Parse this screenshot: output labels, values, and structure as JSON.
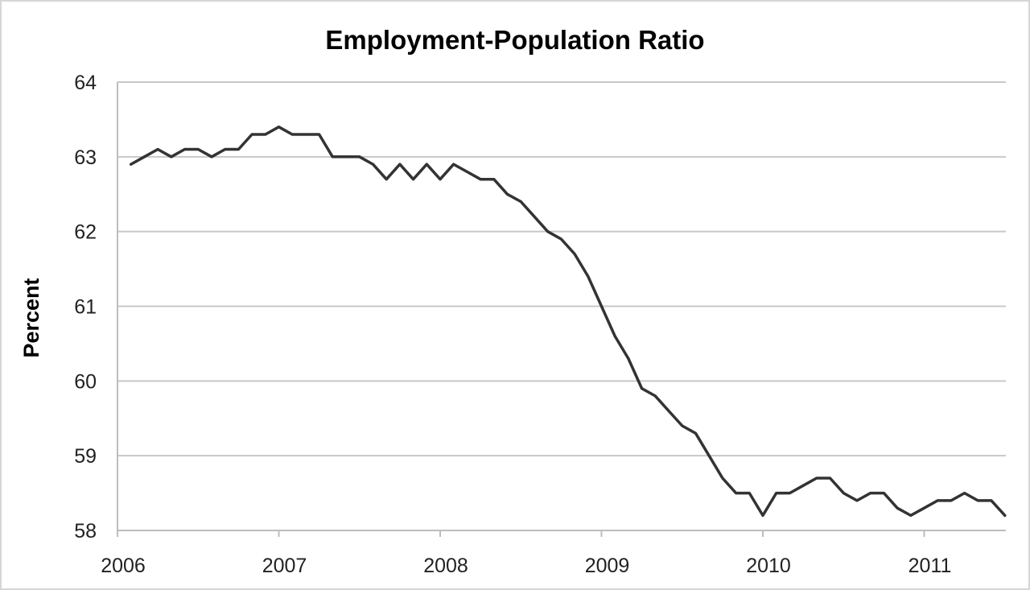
{
  "chart_data": {
    "type": "line",
    "title": "Employment-Population Ratio",
    "xlabel": "",
    "ylabel": "Percent",
    "ylim": [
      58,
      64
    ],
    "yticks": [
      58,
      59,
      60,
      61,
      62,
      63,
      64
    ],
    "xticks": [
      "2006",
      "2007",
      "2008",
      "2009",
      "2010",
      "2011"
    ],
    "grid": true,
    "legend": "none",
    "series": [
      {
        "x": [
          "2006-01",
          "2006-02",
          "2006-03",
          "2006-04",
          "2006-05",
          "2006-06",
          "2006-07",
          "2006-08",
          "2006-09",
          "2006-10",
          "2006-11",
          "2006-12",
          "2007-01",
          "2007-02",
          "2007-03",
          "2007-04",
          "2007-05",
          "2007-06",
          "2007-07",
          "2007-08",
          "2007-09",
          "2007-10",
          "2007-11",
          "2007-12",
          "2008-01",
          "2008-02",
          "2008-03",
          "2008-04",
          "2008-05",
          "2008-06",
          "2008-07",
          "2008-08",
          "2008-09",
          "2008-10",
          "2008-11",
          "2008-12",
          "2009-01",
          "2009-02",
          "2009-03",
          "2009-04",
          "2009-05",
          "2009-06",
          "2009-07",
          "2009-08",
          "2009-09",
          "2009-10",
          "2009-11",
          "2009-12",
          "2010-01",
          "2010-02",
          "2010-03",
          "2010-04",
          "2010-05",
          "2010-06",
          "2010-07",
          "2010-08",
          "2010-09",
          "2010-10",
          "2010-11",
          "2010-12",
          "2011-01",
          "2011-02",
          "2011-03",
          "2011-04",
          "2011-05",
          "2011-06"
        ],
        "values": [
          62.9,
          63.0,
          63.1,
          63.0,
          63.1,
          63.1,
          63.0,
          63.1,
          63.1,
          63.3,
          63.3,
          63.4,
          63.3,
          63.3,
          63.3,
          63.0,
          63.0,
          63.0,
          62.9,
          62.7,
          62.9,
          62.7,
          62.9,
          62.7,
          62.9,
          62.8,
          62.7,
          62.7,
          62.5,
          62.4,
          62.2,
          62.0,
          61.9,
          61.7,
          61.4,
          61.0,
          60.6,
          60.3,
          59.9,
          59.8,
          59.6,
          59.4,
          59.3,
          59.0,
          58.7,
          58.5,
          58.5,
          58.2,
          58.5,
          58.5,
          58.6,
          58.7,
          58.7,
          58.5,
          58.4,
          58.5,
          58.5,
          58.3,
          58.2,
          58.3,
          58.4,
          58.4,
          58.5,
          58.4,
          58.4,
          58.2
        ]
      }
    ]
  }
}
